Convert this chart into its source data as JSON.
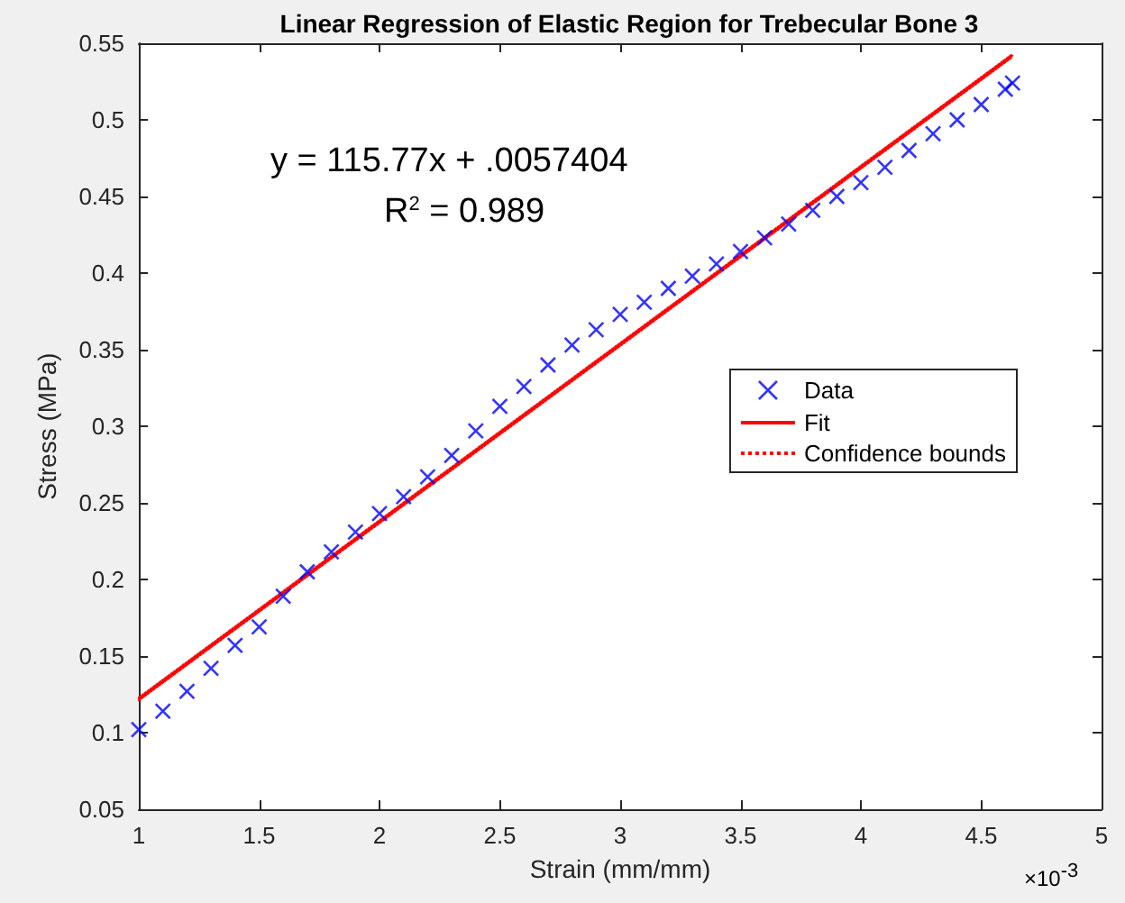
{
  "chart_data": {
    "type": "scatter",
    "title": "Linear Regression of Elastic Region for Trebecular Bone 3",
    "xlabel": "Strain (mm/mm)",
    "ylabel": "Stress (MPa)",
    "annotations": [
      "y = 115.77x + .0057404",
      "R$^{2}$ = 0.989",
      "×10$^{-3}$"
    ],
    "xlim": [
      1,
      5
    ],
    "xticks": [
      1,
      1.5,
      2,
      2.5,
      3,
      3.5,
      4,
      4.5,
      5
    ],
    "ylim": [
      0.05,
      0.55
    ],
    "yticks": [
      0.05,
      0.1,
      0.15,
      0.2,
      0.25,
      0.3,
      0.35,
      0.4,
      0.45,
      0.5,
      0.55
    ],
    "grid": false,
    "legend": "right",
    "series": [
      {
        "name": "Data",
        "marker": "cross",
        "color": "#0000ff",
        "x": [
          1.0,
          1.1,
          1.2,
          1.3,
          1.4,
          1.5,
          1.6,
          1.7,
          1.8,
          1.9,
          2.0,
          2.1,
          2.2,
          2.3,
          2.4,
          2.5,
          2.6,
          2.7,
          2.8,
          2.9,
          3.0,
          3.1,
          3.2,
          3.3,
          3.4,
          3.5,
          3.6,
          3.7,
          3.8,
          3.9,
          4.0,
          4.1,
          4.2,
          4.3,
          4.4,
          4.5,
          4.6,
          4.63
        ],
        "values": [
          0.102,
          0.114,
          0.127,
          0.142,
          0.157,
          0.169,
          0.189,
          0.205,
          0.218,
          0.231,
          0.243,
          0.254,
          0.267,
          0.281,
          0.297,
          0.313,
          0.326,
          0.34,
          0.353,
          0.363,
          0.373,
          0.381,
          0.39,
          0.398,
          0.406,
          0.414,
          0.423,
          0.432,
          0.441,
          0.45,
          0.459,
          0.469,
          0.48,
          0.491,
          0.5,
          0.51,
          0.52,
          0.524
        ]
      },
      {
        "name": "Fit",
        "type": "line",
        "marker": "none",
        "line_style": "solid",
        "color": "#ff0000",
        "x": [
          1,
          4.63
        ],
        "values": [
          0.122,
          0.542
        ]
      },
      {
        "name": "Confidence bounds",
        "type": "line",
        "marker": "none",
        "line_style": "dotted",
        "color": "#ff0000",
        "x": [
          1,
          4.63
        ],
        "values": [
          0.121,
          0.541
        ]
      },
      {
        "type": "line",
        "marker": "none",
        "line_style": "dotted",
        "color": "#ff0000",
        "x": [
          1,
          4.63
        ],
        "values": [
          0.123,
          0.543
        ]
      }
    ]
  }
}
